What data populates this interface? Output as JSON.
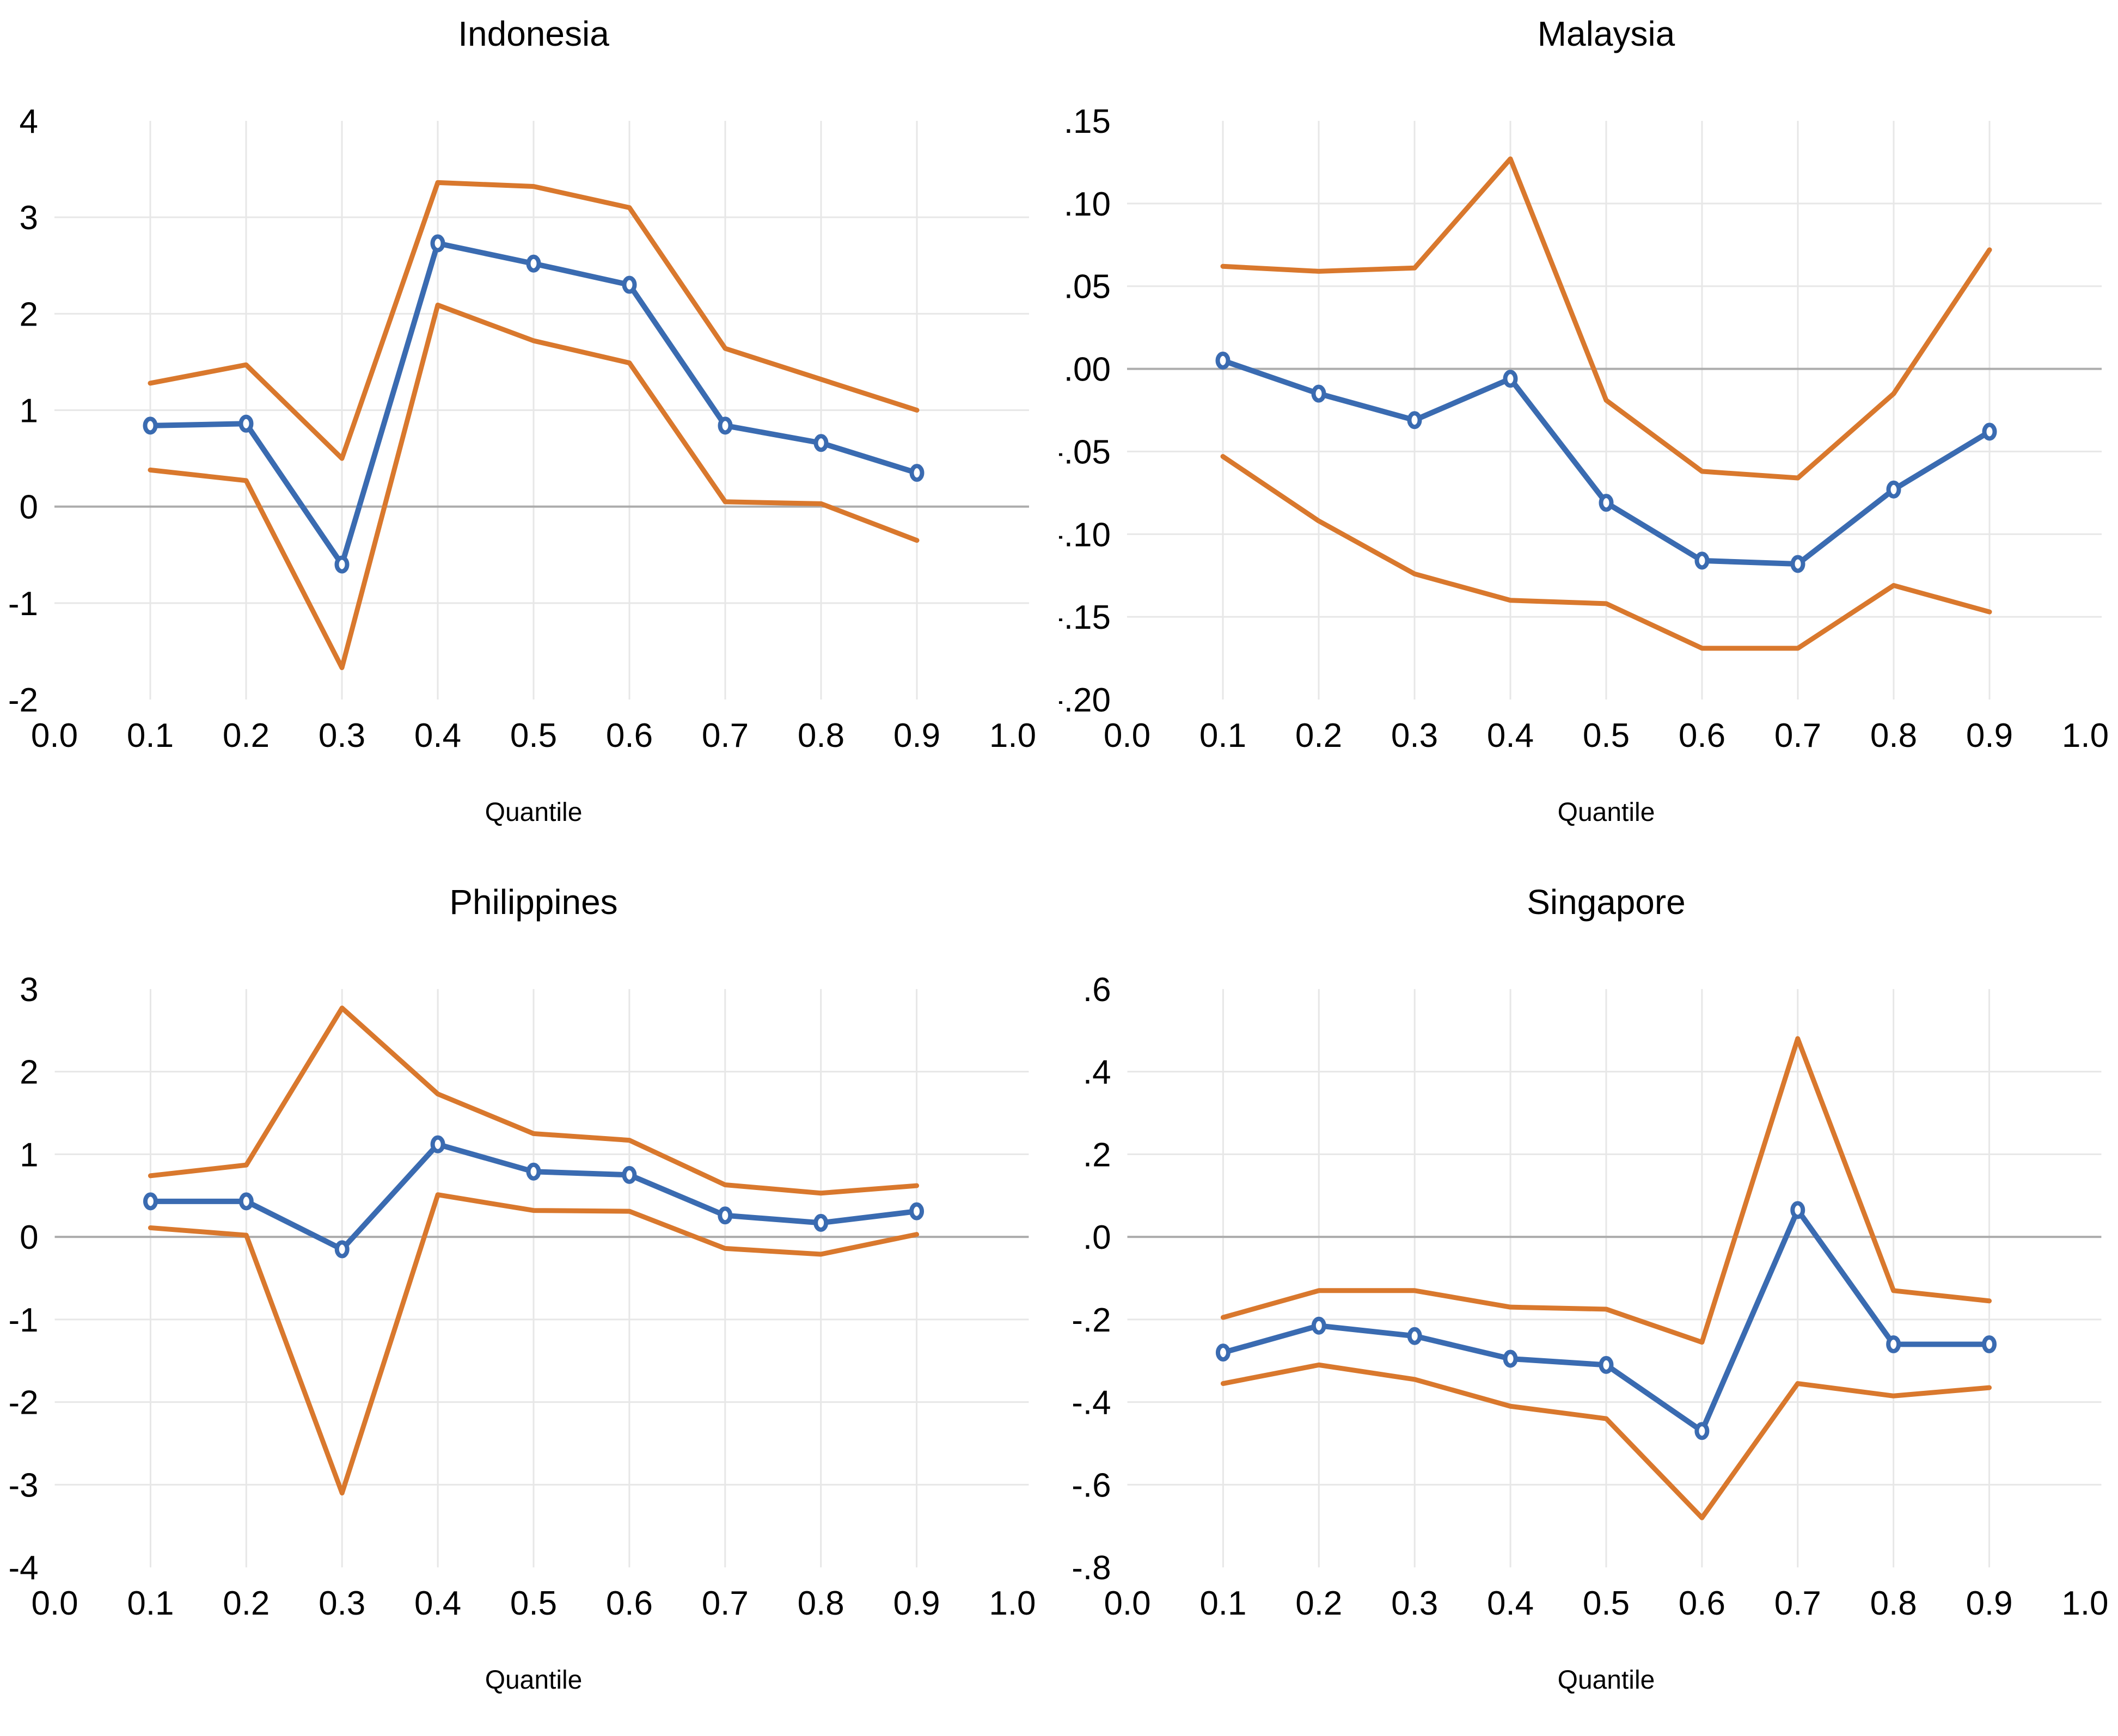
{
  "style": {
    "blue": "#3A6BB1",
    "orange": "#D9782D",
    "gridline": "#E7E7E7",
    "zero_line": "#ACACAC",
    "marker_fill": "#FFFFFF",
    "text": "#000000",
    "background": "#FFFFFF"
  },
  "chart_data": [
    {
      "type": "line",
      "title": "Indonesia",
      "xlabel": "Quantile",
      "ylabel": "",
      "grid": true,
      "legend": false,
      "x": [
        0.1,
        0.2,
        0.3,
        0.4,
        0.5,
        0.6,
        0.7,
        0.8,
        0.9
      ],
      "x_axis": {
        "min": 0.0,
        "max": 1.0,
        "tick_values": [
          0.0,
          0.1,
          0.2,
          0.3,
          0.4,
          0.5,
          0.6,
          0.7,
          0.8,
          0.9,
          1.0
        ],
        "tick_labels": [
          "0.0",
          "0.1",
          "0.2",
          "0.3",
          "0.4",
          "0.5",
          "0.6",
          "0.7",
          "0.8",
          "0.9",
          "1.0"
        ]
      },
      "y_axis": {
        "min": -2,
        "max": 4,
        "tick_values": [
          4,
          3,
          2,
          1,
          0,
          -1,
          -2
        ],
        "tick_labels": [
          "4",
          "3",
          "2",
          "1",
          "0",
          "-1",
          "-2"
        ]
      },
      "series": [
        {
          "name": "point-estimate",
          "role": "point",
          "color": "blue",
          "marker": "circle",
          "values": [
            0.84,
            0.86,
            -0.6,
            2.73,
            2.52,
            2.3,
            0.84,
            0.66,
            0.35
          ]
        },
        {
          "name": "upper-ci",
          "role": "band",
          "color": "orange",
          "marker": "none",
          "values": [
            1.28,
            1.47,
            0.5,
            3.36,
            3.32,
            3.1,
            1.64,
            1.32,
            1.0
          ]
        },
        {
          "name": "lower-ci",
          "role": "band",
          "color": "orange",
          "marker": "none",
          "values": [
            0.38,
            0.27,
            -1.67,
            2.09,
            1.72,
            1.49,
            0.05,
            0.03,
            -0.35
          ]
        }
      ]
    },
    {
      "type": "line",
      "title": "Malaysia",
      "xlabel": "Quantile",
      "ylabel": "",
      "grid": true,
      "legend": false,
      "x": [
        0.1,
        0.2,
        0.3,
        0.4,
        0.5,
        0.6,
        0.7,
        0.8,
        0.9
      ],
      "x_axis": {
        "min": 0.0,
        "max": 1.0,
        "tick_values": [
          0.0,
          0.1,
          0.2,
          0.3,
          0.4,
          0.5,
          0.6,
          0.7,
          0.8,
          0.9,
          1.0
        ],
        "tick_labels": [
          "0.0",
          "0.1",
          "0.2",
          "0.3",
          "0.4",
          "0.5",
          "0.6",
          "0.7",
          "0.8",
          "0.9",
          "1.0"
        ]
      },
      "y_axis": {
        "min": -0.2,
        "max": 0.15,
        "tick_values": [
          0.15,
          0.1,
          0.05,
          0.0,
          -0.05,
          -0.1,
          -0.15,
          -0.2
        ],
        "tick_labels": [
          ".15",
          ".10",
          ".05",
          ".00",
          "-.05",
          "-.10",
          "-.15",
          "-.20"
        ]
      },
      "series": [
        {
          "name": "point-estimate",
          "role": "point",
          "color": "blue",
          "marker": "circle",
          "values": [
            0.005,
            -0.015,
            -0.031,
            -0.006,
            -0.081,
            -0.116,
            -0.118,
            -0.073,
            -0.038
          ]
        },
        {
          "name": "upper-ci",
          "role": "band",
          "color": "orange",
          "marker": "none",
          "values": [
            0.062,
            0.059,
            0.061,
            0.127,
            -0.019,
            -0.062,
            -0.066,
            -0.015,
            0.072
          ]
        },
        {
          "name": "lower-ci",
          "role": "band",
          "color": "orange",
          "marker": "none",
          "values": [
            -0.053,
            -0.092,
            -0.124,
            -0.14,
            -0.142,
            -0.169,
            -0.169,
            -0.131,
            -0.147
          ]
        }
      ]
    },
    {
      "type": "line",
      "title": "Philippines",
      "xlabel": "Quantile",
      "ylabel": "",
      "grid": true,
      "legend": false,
      "x": [
        0.1,
        0.2,
        0.3,
        0.4,
        0.5,
        0.6,
        0.7,
        0.8,
        0.9
      ],
      "x_axis": {
        "min": 0.0,
        "max": 1.0,
        "tick_values": [
          0.0,
          0.1,
          0.2,
          0.3,
          0.4,
          0.5,
          0.6,
          0.7,
          0.8,
          0.9,
          1.0
        ],
        "tick_labels": [
          "0.0",
          "0.1",
          "0.2",
          "0.3",
          "0.4",
          "0.5",
          "0.6",
          "0.7",
          "0.8",
          "0.9",
          "1.0"
        ]
      },
      "y_axis": {
        "min": -4,
        "max": 3,
        "tick_values": [
          3,
          2,
          1,
          0,
          -1,
          -2,
          -3,
          -4
        ],
        "tick_labels": [
          "3",
          "2",
          "1",
          "0",
          "-1",
          "-2",
          "-3",
          "-4"
        ]
      },
      "series": [
        {
          "name": "point-estimate",
          "role": "point",
          "color": "blue",
          "marker": "circle",
          "values": [
            0.43,
            0.43,
            -0.15,
            1.12,
            0.79,
            0.75,
            0.26,
            0.17,
            0.31
          ]
        },
        {
          "name": "upper-ci",
          "role": "band",
          "color": "orange",
          "marker": "none",
          "values": [
            0.74,
            0.87,
            2.77,
            1.73,
            1.25,
            1.17,
            0.63,
            0.53,
            0.62
          ]
        },
        {
          "name": "lower-ci",
          "role": "band",
          "color": "orange",
          "marker": "none",
          "values": [
            0.11,
            0.02,
            -3.1,
            0.51,
            0.32,
            0.31,
            -0.14,
            -0.21,
            0.03
          ]
        }
      ]
    },
    {
      "type": "line",
      "title": "Singapore",
      "xlabel": "Quantile",
      "ylabel": "",
      "grid": true,
      "legend": false,
      "x": [
        0.1,
        0.2,
        0.3,
        0.4,
        0.5,
        0.6,
        0.7,
        0.8,
        0.9
      ],
      "x_axis": {
        "min": 0.0,
        "max": 1.0,
        "tick_values": [
          0.0,
          0.1,
          0.2,
          0.3,
          0.4,
          0.5,
          0.6,
          0.7,
          0.8,
          0.9,
          1.0
        ],
        "tick_labels": [
          "0.0",
          "0.1",
          "0.2",
          "0.3",
          "0.4",
          "0.5",
          "0.6",
          "0.7",
          "0.8",
          "0.9",
          "1.0"
        ]
      },
      "y_axis": {
        "min": -0.8,
        "max": 0.6,
        "tick_values": [
          0.6,
          0.4,
          0.2,
          0.0,
          -0.2,
          -0.4,
          -0.6,
          -0.8
        ],
        "tick_labels": [
          ".6",
          ".4",
          ".2",
          ".0",
          "-.2",
          "-.4",
          "-.6",
          "-.8"
        ]
      },
      "series": [
        {
          "name": "point-estimate",
          "role": "point",
          "color": "blue",
          "marker": "circle",
          "values": [
            -0.28,
            -0.215,
            -0.24,
            -0.295,
            -0.31,
            -0.47,
            0.065,
            -0.26,
            -0.26
          ]
        },
        {
          "name": "upper-ci",
          "role": "band",
          "color": "orange",
          "marker": "none",
          "values": [
            -0.195,
            -0.13,
            -0.13,
            -0.17,
            -0.175,
            -0.255,
            0.48,
            -0.13,
            -0.155
          ]
        },
        {
          "name": "lower-ci",
          "role": "band",
          "color": "orange",
          "marker": "none",
          "values": [
            -0.355,
            -0.31,
            -0.345,
            -0.41,
            -0.44,
            -0.68,
            -0.355,
            -0.385,
            -0.365
          ]
        }
      ]
    }
  ]
}
